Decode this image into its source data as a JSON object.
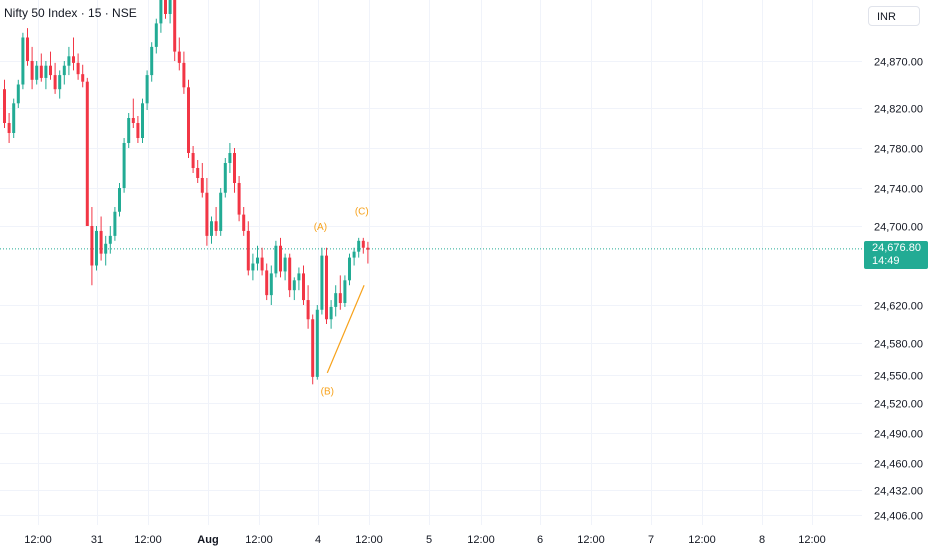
{
  "header": {
    "title": "Nifty 50 Index · 15 · NSE",
    "currency": "INR"
  },
  "last_price": {
    "value": "24,676.80",
    "countdown": "14:49",
    "color": "#22ab94"
  },
  "colors": {
    "up": "#22ab94",
    "down": "#f23645",
    "annotation": "#f7a21b",
    "grid": "#f0f3fa",
    "price_line": "#22ab94"
  },
  "chart_data": {
    "type": "candlestick",
    "title": "Nifty 50 Index · 15 · NSE",
    "y_ticks": [
      "24,870.00",
      "24,820.00",
      "24,780.00",
      "24,740.00",
      "24,700.00",
      "24,620.00",
      "24,580.00",
      "24,550.00",
      "24,520.00",
      "24,490.00",
      "24,460.00",
      "24,432.00",
      "24,406.00"
    ],
    "x_ticks": [
      "12:00",
      "31",
      "12:00",
      "Aug",
      "12:00",
      "4",
      "12:00",
      "5",
      "12:00",
      "6",
      "12:00",
      "7",
      "12:00",
      "8",
      "12:00"
    ],
    "grid": true,
    "last_price": 24676.8,
    "candles": [
      [
        24840,
        24850,
        24800,
        24805
      ],
      [
        24805,
        24815,
        24785,
        24795
      ],
      [
        24795,
        24830,
        24790,
        24825
      ],
      [
        24825,
        24850,
        24820,
        24845
      ],
      [
        24845,
        24900,
        24840,
        24895
      ],
      [
        24895,
        24905,
        24865,
        24870
      ],
      [
        24870,
        24885,
        24840,
        24850
      ],
      [
        24850,
        24870,
        24845,
        24865
      ],
      [
        24865,
        24878,
        24848,
        24852
      ],
      [
        24852,
        24870,
        24840,
        24865
      ],
      [
        24865,
        24880,
        24850,
        24855
      ],
      [
        24855,
        24868,
        24835,
        24840
      ],
      [
        24840,
        24860,
        24830,
        24855
      ],
      [
        24855,
        24870,
        24845,
        24865
      ],
      [
        24865,
        24885,
        24855,
        24875
      ],
      [
        24875,
        24895,
        24860,
        24868
      ],
      [
        24868,
        24878,
        24850,
        24856
      ],
      [
        24856,
        24866,
        24842,
        24848
      ],
      [
        24848,
        24852,
        24700,
        24700
      ],
      [
        24700,
        24720,
        24640,
        24660
      ],
      [
        24660,
        24700,
        24655,
        24695
      ],
      [
        24695,
        24710,
        24665,
        24672
      ],
      [
        24672,
        24690,
        24660,
        24682
      ],
      [
        24682,
        24700,
        24672,
        24690
      ],
      [
        24690,
        24720,
        24685,
        24715
      ],
      [
        24715,
        24745,
        24710,
        24740
      ],
      [
        24740,
        24790,
        24735,
        24785
      ],
      [
        24785,
        24815,
        24780,
        24810
      ],
      [
        24810,
        24830,
        24800,
        24805
      ],
      [
        24805,
        24812,
        24785,
        24790
      ],
      [
        24790,
        24830,
        24785,
        24825
      ],
      [
        24825,
        24860,
        24818,
        24855
      ],
      [
        24855,
        24890,
        24848,
        24885
      ],
      [
        24885,
        24915,
        24878,
        24910
      ],
      [
        24910,
        24950,
        24900,
        24945
      ],
      [
        24945,
        24958,
        24915,
        24920
      ],
      [
        24920,
        24948,
        24910,
        24935
      ],
      [
        24935,
        24950,
        24870,
        24880
      ],
      [
        24880,
        24895,
        24860,
        24868
      ],
      [
        24868,
        24880,
        24835,
        24842
      ],
      [
        24842,
        24850,
        24770,
        24775
      ],
      [
        24775,
        24782,
        24755,
        24760
      ],
      [
        24760,
        24768,
        24745,
        24750
      ],
      [
        24750,
        24765,
        24730,
        24735
      ],
      [
        24735,
        24750,
        24680,
        24690
      ],
      [
        24690,
        24710,
        24682,
        24705
      ],
      [
        24705,
        24720,
        24690,
        24695
      ],
      [
        24695,
        24740,
        24690,
        24735
      ],
      [
        24735,
        24770,
        24730,
        24765
      ],
      [
        24765,
        24785,
        24755,
        24775
      ],
      [
        24775,
        24780,
        24735,
        24745
      ],
      [
        24745,
        24752,
        24705,
        24712
      ],
      [
        24712,
        24720,
        24690,
        24695
      ],
      [
        24695,
        24705,
        24650,
        24655
      ],
      [
        24655,
        24672,
        24645,
        24662
      ],
      [
        24662,
        24680,
        24655,
        24668
      ],
      [
        24668,
        24678,
        24650,
        24655
      ],
      [
        24655,
        24662,
        24625,
        24630
      ],
      [
        24630,
        24660,
        24620,
        24652
      ],
      [
        24652,
        24685,
        24648,
        24680
      ],
      [
        24680,
        24688,
        24648,
        24654
      ],
      [
        24654,
        24672,
        24645,
        24668
      ],
      [
        24668,
        24672,
        24628,
        24635
      ],
      [
        24635,
        24648,
        24625,
        24645
      ],
      [
        24645,
        24658,
        24635,
        24652
      ],
      [
        24652,
        24660,
        24620,
        24625
      ],
      [
        24625,
        24640,
        24595,
        24605
      ],
      [
        24605,
        24610,
        24540,
        24548
      ],
      [
        24548,
        24620,
        24545,
        24615
      ],
      [
        24615,
        24678,
        24610,
        24670
      ],
      [
        24670,
        24678,
        24600,
        24605
      ],
      [
        24605,
        24625,
        24595,
        24618
      ],
      [
        24618,
        24640,
        24608,
        24632
      ],
      [
        24632,
        24650,
        24615,
        24622
      ],
      [
        24622,
        24650,
        24618,
        24645
      ],
      [
        24645,
        24672,
        24640,
        24668
      ],
      [
        24668,
        24678,
        24660,
        24674
      ],
      [
        24674,
        24688,
        24668,
        24685
      ],
      [
        24685,
        24688,
        24672,
        24678
      ],
      [
        24678,
        24684,
        24662,
        24676
      ]
    ],
    "annotations": [
      {
        "label": "(A)",
        "price": 24690
      },
      {
        "label": "(B)",
        "price": 24542
      },
      {
        "label": "(C)",
        "price": 24706
      }
    ]
  }
}
